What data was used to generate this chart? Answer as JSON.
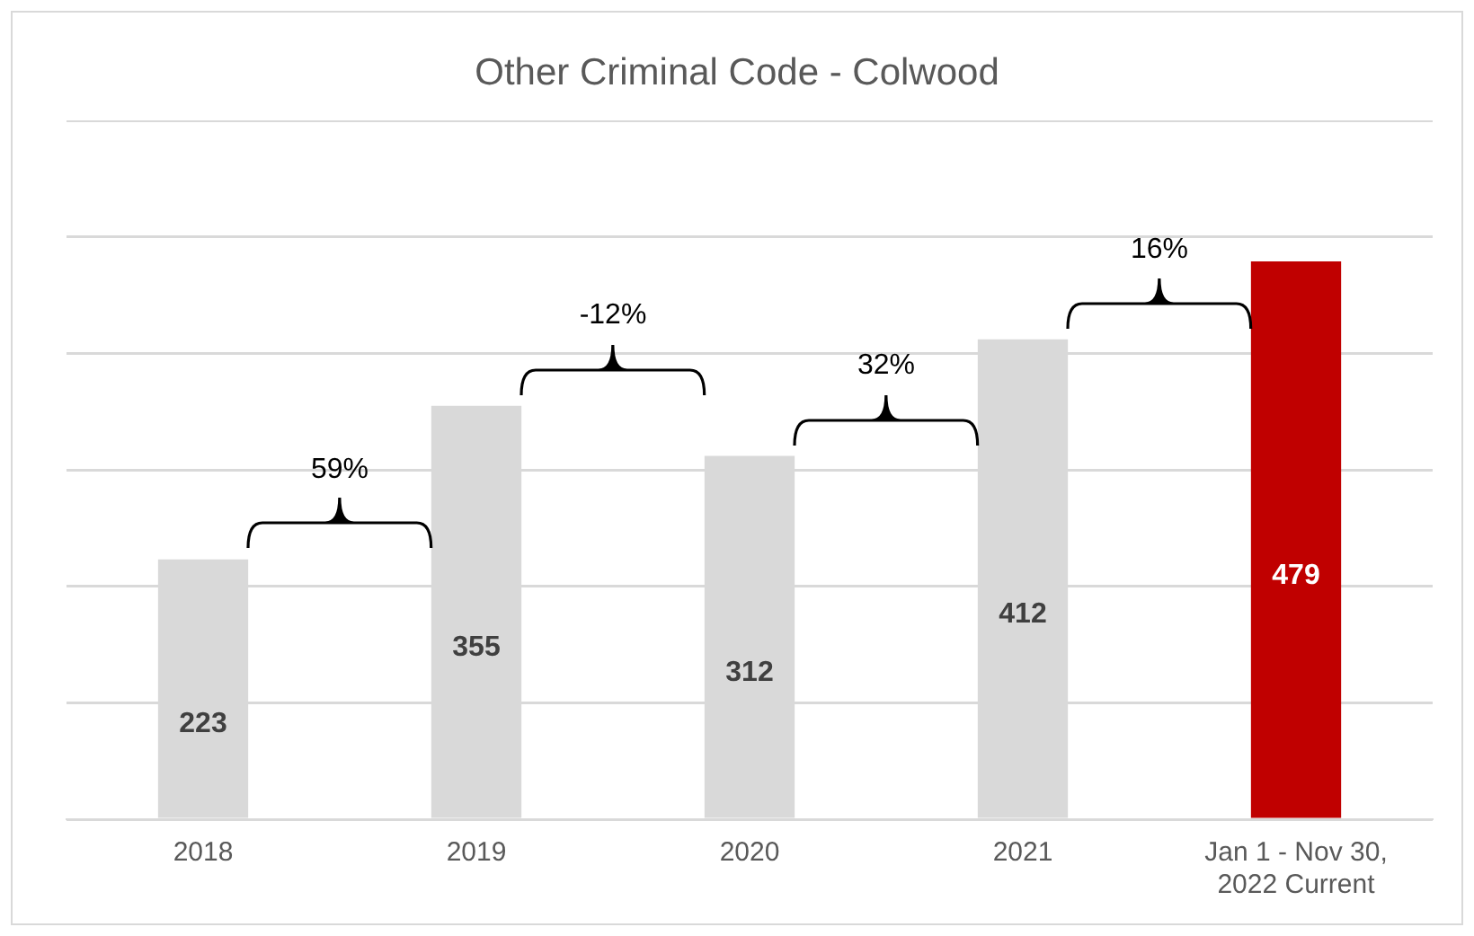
{
  "chart_data": {
    "type": "bar",
    "title": "Other Criminal Code - Colwood",
    "categories": [
      "2018",
      "2019",
      "2020",
      "2021",
      "Jan 1 - Nov 30, 2022 Current"
    ],
    "values": [
      223,
      355,
      312,
      412,
      479
    ],
    "colors": [
      "#d9d9d9",
      "#d9d9d9",
      "#d9d9d9",
      "#d9d9d9",
      "#c00000"
    ],
    "ylim": [
      0,
      600
    ],
    "yticks": [
      {
        "value": 0,
        "label": null
      },
      {
        "value": 100,
        "label": null
      },
      {
        "value": 200,
        "label": null
      },
      {
        "value": 300,
        "label": null
      },
      {
        "value": 400,
        "label": null
      },
      {
        "value": 500,
        "label": null
      },
      {
        "value": 600,
        "label": null
      }
    ],
    "grid": "y",
    "tick_labels": "x",
    "legend": false,
    "data_labels": true,
    "annotations": [
      "59%",
      "-12%",
      "32%",
      "16%"
    ]
  }
}
